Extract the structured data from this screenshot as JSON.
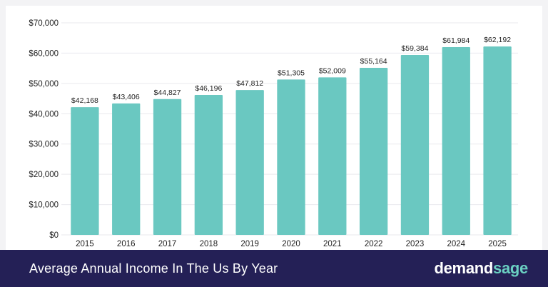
{
  "colors": {
    "bar": "#6ac8c1",
    "footer_bg": "#242056",
    "brand_accent": "#6ad0c2",
    "grid": "#e9e9ee",
    "text": "#222222"
  },
  "footer": {
    "title": "Average Annual Income In The Us By Year",
    "brand_part1": "demand",
    "brand_part2": "sage"
  },
  "chart_data": {
    "type": "bar",
    "categories": [
      "2015",
      "2016",
      "2017",
      "2018",
      "2019",
      "2020",
      "2021",
      "2022",
      "2023",
      "2024",
      "2025"
    ],
    "values": [
      42168,
      43406,
      44827,
      46196,
      47812,
      51305,
      52009,
      55164,
      59384,
      61984,
      62192
    ],
    "data_labels": [
      "$42,168",
      "$43,406",
      "$44,827",
      "$46,196",
      "$47,812",
      "$51,305",
      "$52,009",
      "$55,164",
      "$59,384",
      "$61,984",
      "$62,192"
    ],
    "y_ticks": [
      0,
      10000,
      20000,
      30000,
      40000,
      50000,
      60000,
      70000
    ],
    "y_tick_labels": [
      "$0",
      "$10,000",
      "$20,000",
      "$30,000",
      "$40,000",
      "$50,000",
      "$60,000",
      "$70,000"
    ],
    "ylim": [
      0,
      70000
    ],
    "grid": true,
    "legend": "none"
  }
}
